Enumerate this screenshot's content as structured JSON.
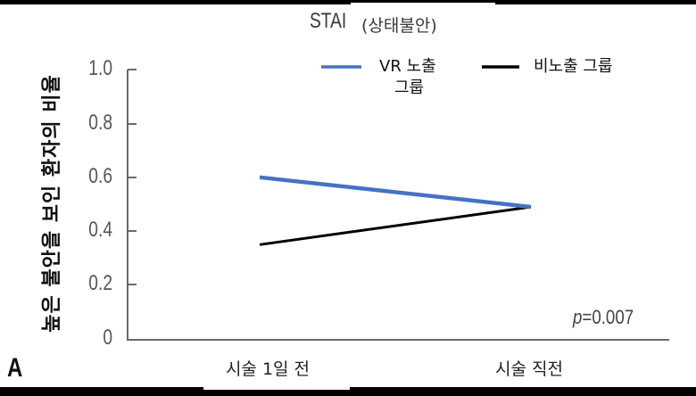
{
  "chart_data": {
    "type": "line",
    "title": "STAI (상태불안)",
    "title_main": "STAI",
    "title_sub": "(상태불안)",
    "xlabel": "",
    "ylabel": "높은 불안을 보인 환자의 비율",
    "categories": [
      "시술 1일 전",
      "시술 직전"
    ],
    "ylim": [
      0,
      1.0
    ],
    "yticks": [
      "1.0",
      "0.8",
      "0.6",
      "0.4",
      "0.2",
      "0"
    ],
    "series": [
      {
        "name": "VR 노출 그룹",
        "color": "#4472C4",
        "values": [
          0.6,
          0.49
        ]
      },
      {
        "name": "비노출 그룹",
        "color": "#000000",
        "values": [
          0.35,
          0.49
        ]
      }
    ],
    "annotation": "p=0.007",
    "legend_position": "top-right",
    "grid": false
  },
  "legend": {
    "vr_line1": "VR 노출",
    "vr_line2": "그룹",
    "non": "비노출 그룹"
  },
  "pvalue": {
    "label": "p",
    "value": "=0.007"
  },
  "panel_label": "A"
}
